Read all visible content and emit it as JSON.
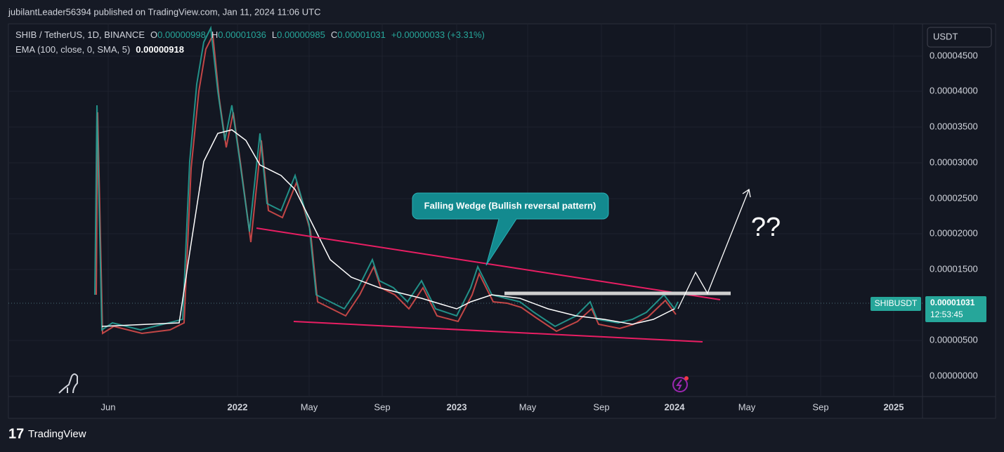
{
  "header": {
    "publisher": "jubilantLeader56394 published on TradingView.com, Jan 11, 2024 11:06 UTC"
  },
  "legend": {
    "symbol": "SHIB / TetherUS, 1D, BINANCE",
    "ohlc": [
      {
        "label": "O",
        "value": "0.00000998"
      },
      {
        "label": "H",
        "value": "0.00001036"
      },
      {
        "label": "L",
        "value": "0.00000985"
      },
      {
        "label": "C",
        "value": "0.00001031"
      }
    ],
    "change": "+0.00000033 (+3.31%)",
    "indicator": "EMA (100, close, 0, SMA, 5)",
    "indicator_value": "0.00000918"
  },
  "price_axis": {
    "currency": "USDT",
    "ticks": [
      "0.00004500",
      "0.00004000",
      "0.00003500",
      "0.00003000",
      "0.00002500",
      "0.00002000",
      "0.00001500",
      "0.00000500",
      "0.00000000"
    ]
  },
  "time_axis": {
    "ticks": [
      "Jun",
      "2022",
      "May",
      "Sep",
      "2023",
      "May",
      "Sep",
      "2024",
      "May",
      "Sep",
      "2025"
    ]
  },
  "price_tag": {
    "symbol": "SHIBUSDT",
    "price": "0.00001031",
    "countdown": "12:53:45"
  },
  "annotations": {
    "callout": "Falling Wedge (Bullish reversal pattern)",
    "question": "??"
  },
  "footer": {
    "brand": "TradingView"
  }
}
